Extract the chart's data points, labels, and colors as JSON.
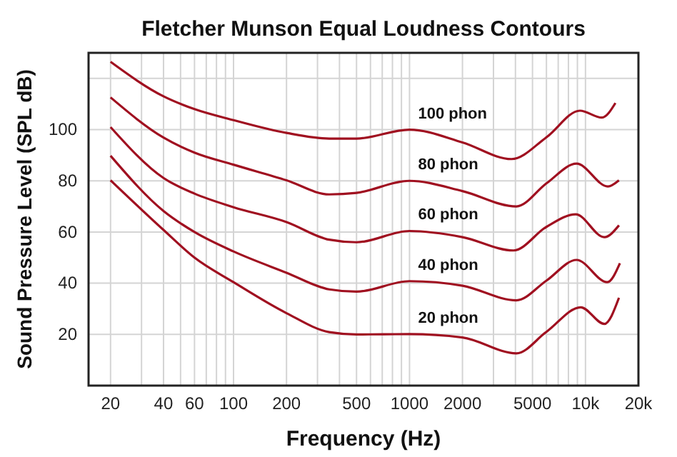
{
  "chart_data": {
    "type": "line",
    "title": "Fletcher Munson Equal Loudness Contours",
    "xlabel": "Frequency (Hz)",
    "ylabel": "Sound Pressure Level (SPL dB)",
    "log": "x",
    "grid": true,
    "legend": false,
    "marker": "none",
    "line_style": "solid",
    "xlim": [
      15,
      20000
    ],
    "ylim": [
      0,
      130
    ],
    "xticks": [
      20,
      {
        "value": 30,
        "label": null
      },
      40,
      {
        "value": 50,
        "label": null
      },
      60,
      {
        "value": 70,
        "label": null
      },
      {
        "value": 80,
        "label": null
      },
      {
        "value": 90,
        "label": null
      },
      100,
      200,
      {
        "value": 300,
        "label": null
      },
      {
        "value": 400,
        "label": null
      },
      500,
      {
        "value": 600,
        "label": null
      },
      {
        "value": 700,
        "label": null
      },
      {
        "value": 800,
        "label": null
      },
      {
        "value": 900,
        "label": null
      },
      1000,
      2000,
      {
        "value": 3000,
        "label": null
      },
      {
        "value": 4000,
        "label": null
      },
      5000,
      {
        "value": 6000,
        "label": null
      },
      {
        "value": 7000,
        "label": null
      },
      {
        "value": 8000,
        "label": null
      },
      {
        "value": 9000,
        "label": null
      },
      {
        "value": 10000,
        "label": "10k"
      },
      {
        "value": 20000,
        "label": "20k"
      }
    ],
    "yticks": [
      20,
      40,
      60,
      80,
      100,
      {
        "value": 120,
        "label": null
      }
    ],
    "series": [
      {
        "name": "100 phon",
        "color": "#a01020",
        "x": [
          20,
          40,
          60,
          100,
          200,
          350,
          500,
          1000,
          2000,
          3800,
          6000,
          9300,
          12400,
          14800
        ],
        "values": [
          126.5,
          113,
          108,
          103.7,
          98.7,
          96.5,
          96.5,
          100,
          95,
          88.5,
          97,
          107.4,
          104.7,
          110.4
        ]
      },
      {
        "name": "80 phon",
        "color": "#a01020",
        "x": [
          20,
          40,
          60,
          100,
          200,
          350,
          500,
          1000,
          2000,
          4050,
          6000,
          8900,
          13400,
          15500
        ],
        "values": [
          112.6,
          96.9,
          91,
          86.3,
          80.2,
          74.7,
          75.3,
          80,
          76,
          70,
          79,
          86.7,
          77.8,
          80.2
        ]
      },
      {
        "name": "60 phon",
        "color": "#a01020",
        "x": [
          20,
          40,
          60,
          100,
          200,
          350,
          500,
          1000,
          2000,
          3900,
          6000,
          8800,
          12800,
          15500
        ],
        "values": [
          101,
          81.1,
          75,
          69.7,
          63.9,
          57,
          56,
          60.4,
          58,
          52.8,
          62,
          66.9,
          58,
          62.6
        ]
      },
      {
        "name": "40 phon",
        "color": "#a01020",
        "x": [
          20,
          40,
          60,
          100,
          200,
          350,
          500,
          1000,
          2000,
          4050,
          6000,
          8900,
          13300,
          15700
        ],
        "values": [
          89.8,
          68.2,
          60,
          52.4,
          44.1,
          37.6,
          36.7,
          40.8,
          39,
          33.3,
          41,
          49.1,
          40.4,
          47.8
        ]
      },
      {
        "name": "20 phon",
        "color": "#a01020",
        "x": [
          20,
          40,
          60,
          100,
          200,
          350,
          500,
          1000,
          2000,
          4050,
          6000,
          9400,
          12800,
          15500
        ],
        "values": [
          80.2,
          60.8,
          50,
          40.4,
          28.3,
          20.9,
          20,
          20.1,
          18.8,
          12.6,
          21,
          30.6,
          24.1,
          34.3
        ]
      }
    ]
  }
}
